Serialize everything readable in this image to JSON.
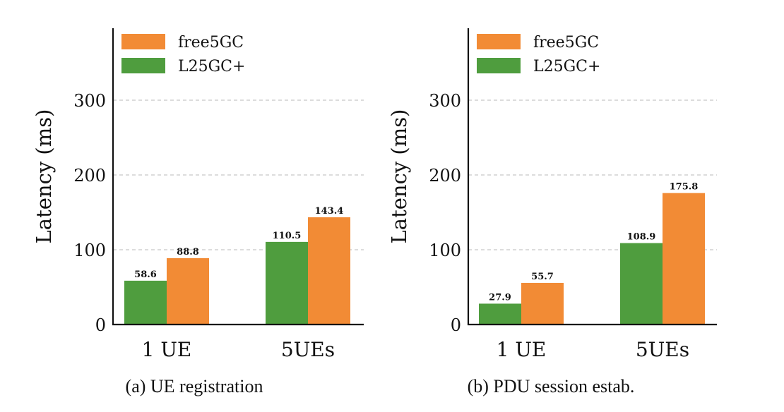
{
  "chart_data": [
    {
      "type": "bar",
      "title": "",
      "caption": "(a) UE registration",
      "ylabel": "Latency (ms)",
      "xlabel": "",
      "ylim": [
        0,
        400
      ],
      "yticks": [
        0,
        100,
        200,
        300
      ],
      "grid": "y dashed",
      "legend_position": "top-left",
      "categories": [
        "1 UE",
        "5UEs"
      ],
      "series": [
        {
          "name": "L25GC+",
          "color": "#4f9d3e",
          "values": [
            58.6,
            110.5
          ]
        },
        {
          "name": "free5GC",
          "color": "#f28b35",
          "values": [
            88.8,
            143.4
          ]
        }
      ],
      "legend": [
        {
          "name": "free5GC",
          "color": "#f28b35"
        },
        {
          "name": "L25GC+",
          "color": "#4f9d3e"
        }
      ]
    },
    {
      "type": "bar",
      "title": "",
      "caption": "(b) PDU session estab.",
      "ylabel": "Latency (ms)",
      "xlabel": "",
      "ylim": [
        0,
        400
      ],
      "yticks": [
        0,
        100,
        200,
        300
      ],
      "grid": "y dashed",
      "legend_position": "top-left",
      "categories": [
        "1 UE",
        "5UEs"
      ],
      "series": [
        {
          "name": "L25GC+",
          "color": "#4f9d3e",
          "values": [
            27.9,
            108.9
          ]
        },
        {
          "name": "free5GC",
          "color": "#f28b35",
          "values": [
            55.7,
            175.8
          ]
        }
      ],
      "legend": [
        {
          "name": "free5GC",
          "color": "#f28b35"
        },
        {
          "name": "L25GC+",
          "color": "#4f9d3e"
        }
      ]
    }
  ]
}
